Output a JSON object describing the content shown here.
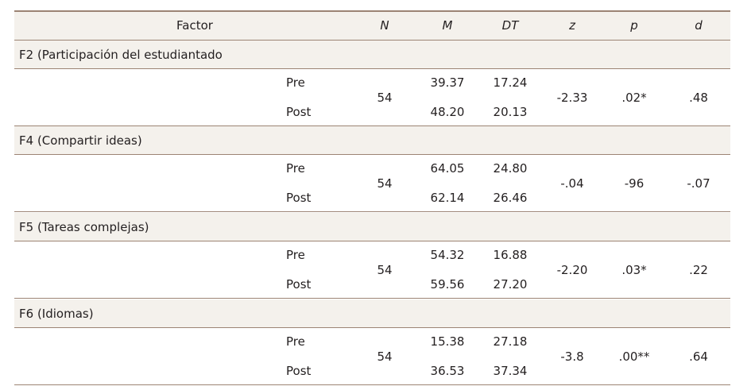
{
  "table": {
    "header": [
      "Factor",
      "N",
      "M",
      "DT",
      "z",
      "p",
      "d"
    ],
    "groups": [
      {
        "title": "F2 (Participación del estudiantado",
        "n": "54",
        "z": "-2.33",
        "p": ".02*",
        "d": ".48",
        "rows": [
          {
            "phase": "Pre",
            "m": "39.37",
            "dt": "17.24"
          },
          {
            "phase": "Post",
            "m": "48.20",
            "dt": "20.13"
          }
        ]
      },
      {
        "title": "F4 (Compartir ideas)",
        "n": "54",
        "z": "-.04",
        "p": "-96",
        "d": "-.07",
        "rows": [
          {
            "phase": "Pre",
            "m": "64.05",
            "dt": "24.80"
          },
          {
            "phase": "Post",
            "m": "62.14",
            "dt": "26.46"
          }
        ]
      },
      {
        "title": "F5 (Tareas complejas)",
        "n": "54",
        "z": "-2.20",
        "p": ".03*",
        "d": ".22",
        "rows": [
          {
            "phase": "Pre",
            "m": "54.32",
            "dt": "16.88"
          },
          {
            "phase": "Post",
            "m": "59.56",
            "dt": "27.20"
          }
        ]
      },
      {
        "title": "F6 (Idiomas)",
        "n": "54",
        "z": "-3.8",
        "p": ".00**",
        "d": ".64",
        "rows": [
          {
            "phase": "Pre",
            "m": "15.38",
            "dt": "27.18"
          },
          {
            "phase": "Post",
            "m": "36.53",
            "dt": "37.34"
          }
        ]
      }
    ]
  }
}
